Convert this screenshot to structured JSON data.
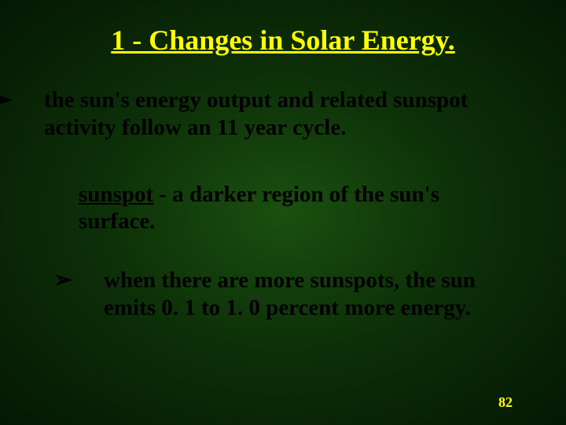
{
  "title": "1 - Changes in Solar Energy.",
  "bullet_main": "the sun's energy output and related sunspot activity follow an 11 year cycle.",
  "sub1_term": "sunspot",
  "sub1_rest": " - a darker region of the sun's surface.",
  "sub2": "when there are more sunspots, the sun emits 0. 1 to 1. 0 percent more energy.",
  "arrow_glyph": "➢",
  "page_number": "82",
  "colors": {
    "title": "#ffff00",
    "body": "#000000",
    "page_num": "#ffff00",
    "bg_center": "#1a5010",
    "bg_mid": "#0d3008",
    "bg_edge": "#041803"
  },
  "fontsize": {
    "title": 36,
    "body": 29,
    "page_num": 18
  }
}
